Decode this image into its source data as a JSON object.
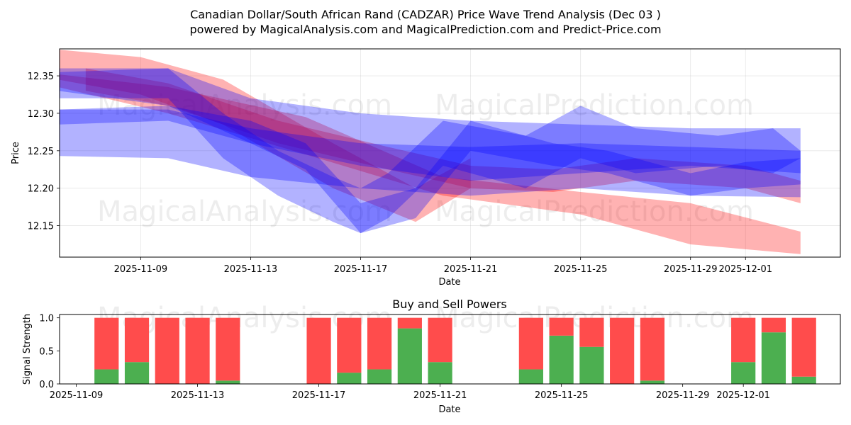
{
  "chart_data": [
    {
      "type": "area",
      "title": "Canadian Dollar/South African Rand (CADZAR) Price Wave Trend Analysis (Dec 03 )",
      "subtitle": "powered by MagicalAnalysis.com and MagicalPrediction.com and Predict-Price.com",
      "xlabel": "Date",
      "ylabel": "Price",
      "xlim": [
        "2025-11-06",
        "2025-12-04"
      ],
      "ylim": [
        12.108,
        12.386
      ],
      "x_ticks": [
        "2025-11-09",
        "2025-11-13",
        "2025-11-17",
        "2025-11-21",
        "2025-11-25",
        "2025-11-29",
        "2025-12-01"
      ],
      "y_ticks": [
        "12.15",
        "12.20",
        "12.25",
        "12.30",
        "12.35"
      ],
      "grid": true,
      "watermarks": [
        "MagicalAnalysis.com",
        "MagicalPrediction.com"
      ],
      "series": [
        {
          "name": "red-band-1",
          "color": "#ff0000",
          "x": [
            "2025-11-06",
            "2025-11-10",
            "2025-11-15",
            "2025-11-20",
            "2025-11-25",
            "2025-11-29",
            "2025-12-03"
          ],
          "lower": [
            12.335,
            12.3,
            12.245,
            12.19,
            12.165,
            12.125,
            12.112
          ],
          "upper": [
            12.352,
            12.335,
            12.295,
            12.215,
            12.195,
            12.18,
            12.142
          ]
        },
        {
          "name": "red-band-2",
          "color": "#ff0000",
          "x": [
            "2025-11-06",
            "2025-11-09",
            "2025-11-12",
            "2025-11-16",
            "2025-11-19",
            "2025-11-21"
          ],
          "lower": [
            12.345,
            12.325,
            12.285,
            12.2,
            12.155,
            12.2
          ],
          "upper": [
            12.385,
            12.375,
            12.345,
            12.26,
            12.2,
            12.24
          ]
        },
        {
          "name": "red-band-3",
          "color": "#ff0000",
          "x": [
            "2025-11-07",
            "2025-11-10",
            "2025-11-14",
            "2025-11-18",
            "2025-11-21",
            "2025-11-24",
            "2025-11-27",
            "2025-12-01",
            "2025-12-03"
          ],
          "lower": [
            12.33,
            12.31,
            12.26,
            12.225,
            12.2,
            12.195,
            12.21,
            12.2,
            12.18
          ]
        },
        {
          "name": "blue-band-1",
          "color": "#0000ff",
          "x": [
            "2025-11-06",
            "2025-11-10",
            "2025-11-13",
            "2025-11-17",
            "2025-11-21",
            "2025-11-25",
            "2025-11-29",
            "2025-12-03"
          ],
          "lower": [
            12.33,
            12.31,
            12.26,
            12.23,
            12.21,
            12.22,
            12.23,
            12.22
          ],
          "upper": [
            12.36,
            12.36,
            12.32,
            12.3,
            12.29,
            12.285,
            12.28,
            12.28
          ]
        },
        {
          "name": "blue-band-2",
          "color": "#0000ff",
          "x": [
            "2025-11-06",
            "2025-11-10",
            "2025-11-13",
            "2025-11-17",
            "2025-11-21",
            "2025-11-25",
            "2025-11-29",
            "2025-12-03"
          ],
          "lower": [
            12.243,
            12.24,
            12.215,
            12.2,
            12.19,
            12.2,
            12.19,
            12.188
          ],
          "upper": [
            12.305,
            12.305,
            12.28,
            12.26,
            12.255,
            12.26,
            12.255,
            12.25
          ]
        },
        {
          "name": "blue-band-3",
          "color": "#0000ff",
          "x": [
            "2025-11-06",
            "2025-11-10",
            "2025-11-12",
            "2025-11-14",
            "2025-11-16",
            "2025-11-17",
            "2025-11-18",
            "2025-11-20",
            "2025-11-23",
            "2025-11-25",
            "2025-11-27",
            "2025-11-30",
            "2025-12-02",
            "2025-12-03"
          ],
          "lower": [
            12.32,
            12.32,
            12.24,
            12.19,
            12.155,
            12.14,
            12.16,
            12.23,
            12.2,
            12.24,
            12.22,
            12.23,
            12.22,
            12.24
          ],
          "upper": [
            12.355,
            12.36,
            12.3,
            12.25,
            12.215,
            12.2,
            12.22,
            12.29,
            12.27,
            12.31,
            12.28,
            12.27,
            12.28,
            12.25
          ]
        },
        {
          "name": "blue-band-4",
          "color": "#0000ff",
          "x": [
            "2025-11-06",
            "2025-11-10",
            "2025-11-13",
            "2025-11-15",
            "2025-11-17",
            "2025-11-19",
            "2025-11-21",
            "2025-11-24",
            "2025-11-26",
            "2025-11-29",
            "2025-12-01",
            "2025-12-03"
          ],
          "lower": [
            12.285,
            12.29,
            12.26,
            12.225,
            12.14,
            12.16,
            12.25,
            12.23,
            12.22,
            12.19,
            12.2,
            12.205
          ],
          "upper": [
            12.305,
            12.31,
            12.29,
            12.26,
            12.18,
            12.2,
            12.29,
            12.26,
            12.25,
            12.22,
            12.235,
            12.24
          ]
        }
      ]
    },
    {
      "type": "bar",
      "title": "Buy and Sell Powers",
      "xlabel": "Date",
      "ylabel": "Signal Strength",
      "xlim": [
        "2025-11-09",
        "2025-12-04"
      ],
      "ylim": [
        0,
        1.05
      ],
      "x_ticks": [
        "2025-11-09",
        "2025-11-13",
        "2025-11-17",
        "2025-11-21",
        "2025-11-25",
        "2025-11-29",
        "2025-12-01"
      ],
      "y_ticks": [
        "0.0",
        "0.5",
        "1.0"
      ],
      "watermarks": [
        "MagicalAnalysis.com",
        "MagicalPrediction.com"
      ],
      "colors": {
        "buy": "#4caf50",
        "sell": "#ff4c4c"
      },
      "series": [
        {
          "name": "Buy",
          "color": "#4caf50",
          "values": [
            0.22,
            0.33,
            0.0,
            0.0,
            0.05,
            0.0,
            0.17,
            0.22,
            0.84,
            0.33,
            0.22,
            0.73,
            0.56,
            0.0,
            0.05,
            0.33,
            0.78,
            0.11
          ]
        },
        {
          "name": "Sell",
          "color": "#ff4c4c",
          "values": [
            0.78,
            0.67,
            1.0,
            1.0,
            0.95,
            1.0,
            0.83,
            0.78,
            0.16,
            0.67,
            0.78,
            0.27,
            0.44,
            1.0,
            0.95,
            0.67,
            0.22,
            0.89
          ]
        }
      ],
      "categories": [
        "2025-11-10",
        "2025-11-11",
        "2025-11-12",
        "2025-11-13",
        "2025-11-14",
        "2025-11-17",
        "2025-11-18",
        "2025-11-19",
        "2025-11-20",
        "2025-11-21",
        "2025-11-24",
        "2025-11-25",
        "2025-11-26",
        "2025-11-27",
        "2025-11-28",
        "2025-12-01",
        "2025-12-02",
        "2025-12-03"
      ]
    }
  ]
}
